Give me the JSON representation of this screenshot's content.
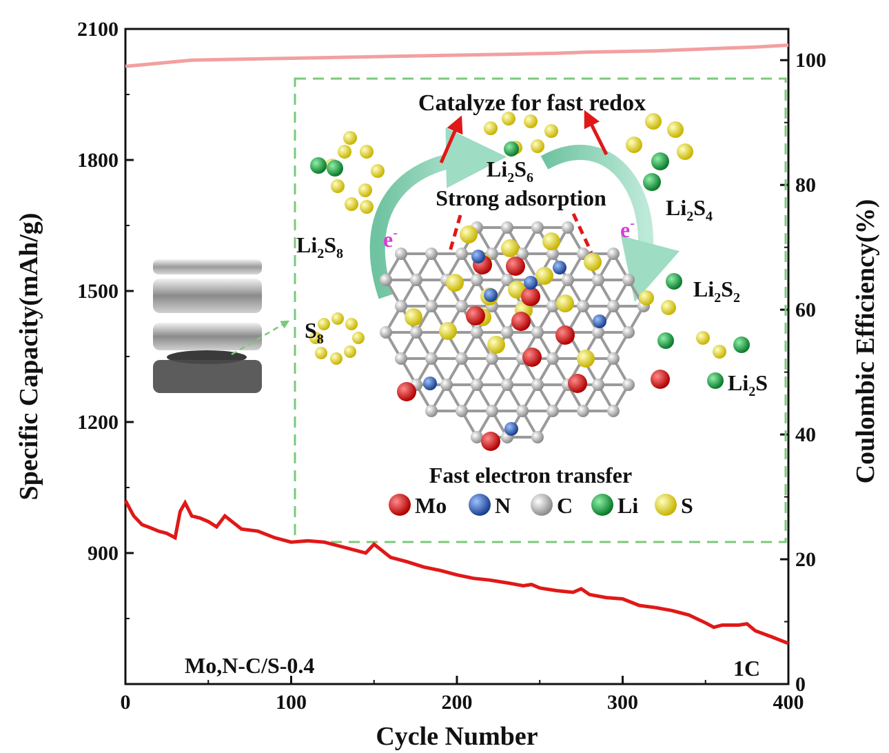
{
  "chart_data": {
    "type": "line",
    "xlabel": "Cycle Number",
    "ylabel_left": "Specific Capacity(mAh/g)",
    "ylabel_right": "Coulombic Efficiency(%)",
    "xlim": [
      0,
      400
    ],
    "ylim_left": [
      600,
      2100
    ],
    "ylim_right": [
      0,
      105
    ],
    "xticks": [
      "0",
      "100",
      "200",
      "300",
      "400"
    ],
    "yticks_left": [
      "900",
      "1200",
      "1500",
      "1800",
      "2100"
    ],
    "yticks_right": [
      "0",
      "20",
      "40",
      "60",
      "80",
      "100"
    ],
    "sample_label": "Mo,N-C/S-0.4",
    "rate_label": "1C",
    "series": [
      {
        "name": "Specific Capacity",
        "axis": "left",
        "color": "#e01818",
        "x": [
          0,
          5,
          10,
          15,
          20,
          25,
          30,
          33,
          36,
          40,
          45,
          50,
          55,
          60,
          65,
          70,
          80,
          90,
          100,
          110,
          120,
          130,
          140,
          145,
          150,
          160,
          170,
          180,
          190,
          200,
          210,
          220,
          230,
          240,
          245,
          250,
          260,
          270,
          275,
          280,
          290,
          300,
          310,
          320,
          330,
          340,
          350,
          355,
          360,
          370,
          375,
          380,
          390,
          400
        ],
        "values": [
          1020,
          985,
          965,
          958,
          950,
          945,
          935,
          995,
          1015,
          985,
          980,
          972,
          960,
          985,
          970,
          955,
          950,
          935,
          925,
          928,
          925,
          915,
          905,
          900,
          920,
          890,
          880,
          868,
          860,
          850,
          842,
          838,
          832,
          825,
          828,
          820,
          814,
          810,
          818,
          805,
          798,
          795,
          780,
          775,
          768,
          758,
          740,
          730,
          735,
          735,
          738,
          722,
          708,
          693
        ]
      },
      {
        "name": "Coulombic Efficiency",
        "axis": "right",
        "color": "#f2a0a0",
        "x": [
          0,
          20,
          40,
          60,
          80,
          100,
          120,
          140,
          160,
          180,
          200,
          220,
          240,
          260,
          280,
          300,
          320,
          340,
          360,
          380,
          400
        ],
        "values": [
          99.0,
          99.5,
          100.0,
          100.1,
          100.2,
          100.3,
          100.4,
          100.5,
          100.6,
          100.7,
          100.8,
          100.9,
          101.0,
          101.1,
          101.3,
          101.4,
          101.5,
          101.7,
          101.9,
          102.1,
          102.4
        ]
      }
    ],
    "inset": {
      "title": "Catalyze for fast redox",
      "adsorption_label": "Strong adsorption",
      "transfer_label": "Fast electron transfer",
      "electron_symbol": "e",
      "electron_sup": "-",
      "species": [
        {
          "base": "Li",
          "sub": "2",
          "mid": "S",
          "sub2": "8"
        },
        {
          "base": "Li",
          "sub": "2",
          "mid": "S",
          "sub2": "6"
        },
        {
          "base": "Li",
          "sub": "2",
          "mid": "S",
          "sub2": "4"
        },
        {
          "base": "Li",
          "sub": "2",
          "mid": "S",
          "sub2": "2"
        },
        {
          "base": "Li",
          "sub": "2",
          "mid": "S",
          "sub2": ""
        },
        {
          "base": "S",
          "sub": "8",
          "mid": "",
          "sub2": ""
        }
      ],
      "legend": [
        {
          "label": "Mo",
          "color": "#d81010"
        },
        {
          "label": "N",
          "color": "#2a5fb8"
        },
        {
          "label": "C",
          "color": "#c8c8c8"
        },
        {
          "label": "Li",
          "color": "#18a040"
        },
        {
          "label": "S",
          "color": "#f0e020"
        }
      ]
    }
  }
}
